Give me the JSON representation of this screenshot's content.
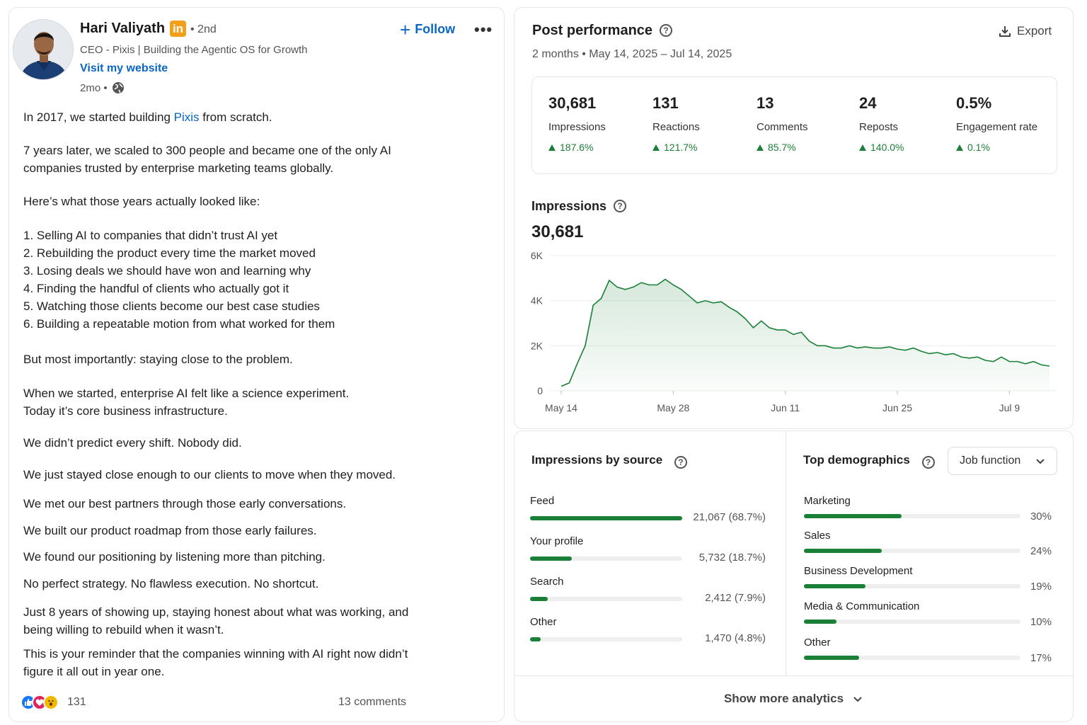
{
  "post": {
    "author": {
      "name": "Hari Valiyath",
      "badge": "in",
      "degree": "• 2nd",
      "headline": "CEO - Pixis | Building the Agentic OS for Growth",
      "website_label": "Visit my website",
      "age": "2mo •"
    },
    "follow_label": "Follow",
    "more_label": "•••",
    "text": {
      "line1_pre": "In 2017, we started building ",
      "line1_link": "Pixis",
      "line1_post": " from scratch.",
      "p2": [
        "7 years later, we scaled to 300 people and became one of the only AI",
        "companies trusted by enterprise marketing teams globally."
      ],
      "p3": "Here’s what those years actually looked like:",
      "list": [
        "1. Selling AI to companies that didn’t trust AI yet",
        "2. Rebuilding the product every time the market moved",
        "3. Losing deals we should have won and learning why",
        "4. Finding the handful of clients who actually got it",
        "5. Watching those clients become our best case studies",
        "6. Building a repeatable motion from what worked for them"
      ],
      "p4": "But most importantly: staying close to the problem.",
      "p5": [
        "When we started, enterprise AI felt like a science experiment.",
        "Today it’s core business infrastructure."
      ],
      "p6": "We didn’t predict every shift. Nobody did.",
      "p7": "We just stayed close enough to our clients to move when they moved.",
      "p8": "We met our best partners through those early conversations.",
      "p9": "We built our product roadmap from those early failures.",
      "p10": "We found our positioning by listening more than pitching.",
      "p11": "No perfect strategy. No flawless execution. No shortcut.",
      "p12": [
        "Just 8 years of showing up, staying honest about what was working, and",
        "being willing to rebuild when it wasn’t."
      ],
      "p13": [
        "This is your reminder that the companies winning with AI right now didn’t",
        "figure it all out in year one."
      ]
    },
    "reaction_count": "131",
    "comments_label": "13 comments"
  },
  "performance": {
    "title": "Post performance",
    "range": "2 months  •  May 14, 2025 – Jul 14, 2025",
    "export_label": "Export",
    "metrics": [
      {
        "value": "30,681",
        "label": "Impressions",
        "change": "187.6%"
      },
      {
        "value": "131",
        "label": "Reactions",
        "change": "121.7%"
      },
      {
        "value": "13",
        "label": "Comments",
        "change": "85.7%"
      },
      {
        "value": "24",
        "label": "Reposts",
        "change": "140.0%"
      },
      {
        "value": "0.5%",
        "label": "Engagement rate",
        "change": "0.1%"
      }
    ],
    "impressions_title": "Impressions",
    "impressions_total": "30,681"
  },
  "chart_data": {
    "type": "area",
    "title": "Impressions",
    "y_ticks": [
      "6K",
      "4K",
      "2K",
      "0"
    ],
    "x_ticks": [
      "May 14",
      "May 28",
      "Jun 11",
      "Jun 25",
      "Jul 9"
    ],
    "ylim": [
      0,
      6000
    ],
    "x": [
      "2025-05-14",
      "2025-05-15",
      "2025-05-16",
      "2025-05-17",
      "2025-05-18",
      "2025-05-19",
      "2025-05-20",
      "2025-05-21",
      "2025-05-22",
      "2025-05-23",
      "2025-05-24",
      "2025-05-25",
      "2025-05-26",
      "2025-05-27",
      "2025-05-28",
      "2025-05-29",
      "2025-05-30",
      "2025-05-31",
      "2025-06-01",
      "2025-06-02",
      "2025-06-03",
      "2025-06-04",
      "2025-06-05",
      "2025-06-06",
      "2025-06-07",
      "2025-06-08",
      "2025-06-09",
      "2025-06-10",
      "2025-06-11",
      "2025-06-12",
      "2025-06-13",
      "2025-06-14",
      "2025-06-15",
      "2025-06-16",
      "2025-06-17",
      "2025-06-18",
      "2025-06-19",
      "2025-06-20",
      "2025-06-21",
      "2025-06-22",
      "2025-06-23",
      "2025-06-24",
      "2025-06-25",
      "2025-06-26",
      "2025-06-27",
      "2025-06-28",
      "2025-06-29",
      "2025-06-30",
      "2025-07-01",
      "2025-07-02",
      "2025-07-03",
      "2025-07-04",
      "2025-07-05",
      "2025-07-06",
      "2025-07-07",
      "2025-07-08",
      "2025-07-09",
      "2025-07-10",
      "2025-07-11",
      "2025-07-12",
      "2025-07-13",
      "2025-07-14"
    ],
    "series": [
      {
        "values": [
          200,
          350,
          1200,
          2000,
          3800,
          4100,
          4900,
          4600,
          4500,
          4600,
          4800,
          4700,
          4700,
          4950,
          4700,
          4500,
          4200,
          3900,
          4000,
          3900,
          3950,
          3700,
          3500,
          3200,
          2800,
          3100,
          2800,
          2700,
          2700,
          2500,
          2600,
          2200,
          2000,
          2000,
          1900,
          1900,
          2000,
          1900,
          1950,
          1900,
          1900,
          1950,
          1850,
          1800,
          1900,
          1750,
          1650,
          1700,
          1600,
          1650,
          1500,
          1450,
          1500,
          1350,
          1300,
          1500,
          1300,
          1300,
          1200,
          1300,
          1150,
          1100
        ]
      }
    ]
  },
  "sources": {
    "title": "Impressions by source",
    "rows": [
      {
        "label": "Feed",
        "value": "21,067 (68.7%)",
        "pct": 68.7
      },
      {
        "label": "Your profile",
        "value": "5,732 (18.7%)",
        "pct": 18.7
      },
      {
        "label": "Search",
        "value": "2,412 (7.9%)",
        "pct": 7.9
      },
      {
        "label": "Other",
        "value": "1,470 (4.8%)",
        "pct": 4.8
      }
    ]
  },
  "demographics": {
    "title": "Top demographics",
    "dropdown": "Job function",
    "rows": [
      {
        "label": "Marketing",
        "value": "30%",
        "pct": 30
      },
      {
        "label": "Sales",
        "value": "24%",
        "pct": 24
      },
      {
        "label": "Business Development",
        "value": "19%",
        "pct": 19
      },
      {
        "label": "Media & Communication",
        "value": "10%",
        "pct": 10
      },
      {
        "label": "Other",
        "value": "17%",
        "pct": 17
      }
    ]
  },
  "show_more_label": "Show more analytics",
  "colors": {
    "accent_blue": "#0a66c2",
    "positive_green": "#1a7f37",
    "badge_orange": "#f0a019"
  }
}
